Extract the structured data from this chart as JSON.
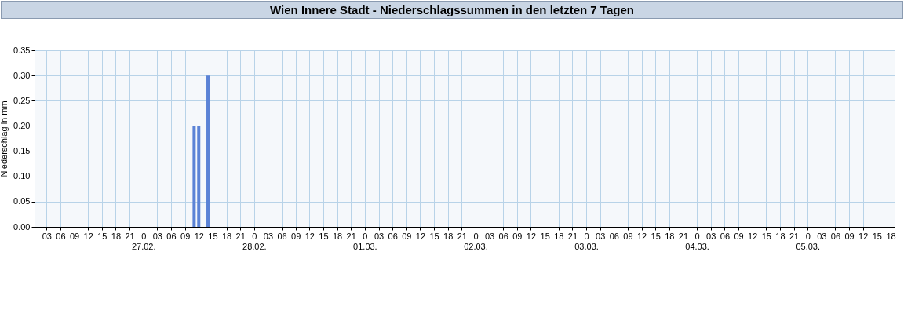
{
  "chart_data": {
    "type": "bar",
    "title": "Wien Innere Stadt - Niederschlagssummen in den letzten 7 Tagen",
    "ylabel": "Niederschlag in mm",
    "x": [
      "--02-27T11:00",
      "--02-27T12:00",
      "--02-27T14:00"
    ],
    "series": [
      {
        "color": "#5b83d6",
        "values": [
          0.2,
          0.2,
          0.3
        ]
      }
    ],
    "xlim": [
      "--02-26T01:15",
      "--03-05T18:00"
    ],
    "xticks": [
      {
        "value": "--02-26T03:00",
        "label": "03"
      },
      {
        "value": "--02-26T06:00",
        "label": "06"
      },
      {
        "value": "--02-26T09:00",
        "label": "09"
      },
      {
        "value": "--02-26T12:00",
        "label": "12"
      },
      {
        "value": "--02-26T15:00",
        "label": "15"
      },
      {
        "value": "--02-26T18:00",
        "label": "18"
      },
      {
        "value": "--02-26T21:00",
        "label": "21"
      },
      {
        "value": "--02-27T00:00",
        "label": "0\n27.02."
      },
      {
        "value": "--02-27T03:00",
        "label": "03"
      },
      {
        "value": "--02-27T06:00",
        "label": "06"
      },
      {
        "value": "--02-27T09:00",
        "label": "09"
      },
      {
        "value": "--02-27T12:00",
        "label": "12"
      },
      {
        "value": "--02-27T15:00",
        "label": "15"
      },
      {
        "value": "--02-27T18:00",
        "label": "18"
      },
      {
        "value": "--02-27T21:00",
        "label": "21"
      },
      {
        "value": "--02-28T00:00",
        "label": "0\n28.02."
      },
      {
        "value": "--02-28T03:00",
        "label": "03"
      },
      {
        "value": "--02-28T06:00",
        "label": "06"
      },
      {
        "value": "--02-28T09:00",
        "label": "09"
      },
      {
        "value": "--02-28T12:00",
        "label": "12"
      },
      {
        "value": "--02-28T15:00",
        "label": "15"
      },
      {
        "value": "--02-28T18:00",
        "label": "18"
      },
      {
        "value": "--02-28T21:00",
        "label": "21"
      },
      {
        "value": "--03-01T00:00",
        "label": "0\n01.03."
      },
      {
        "value": "--03-01T03:00",
        "label": "03"
      },
      {
        "value": "--03-01T06:00",
        "label": "06"
      },
      {
        "value": "--03-01T09:00",
        "label": "09"
      },
      {
        "value": "--03-01T12:00",
        "label": "12"
      },
      {
        "value": "--03-01T15:00",
        "label": "15"
      },
      {
        "value": "--03-01T18:00",
        "label": "18"
      },
      {
        "value": "--03-01T21:00",
        "label": "21"
      },
      {
        "value": "--03-02T00:00",
        "label": "0\n02.03."
      },
      {
        "value": "--03-02T03:00",
        "label": "03"
      },
      {
        "value": "--03-02T06:00",
        "label": "06"
      },
      {
        "value": "--03-02T09:00",
        "label": "09"
      },
      {
        "value": "--03-02T12:00",
        "label": "12"
      },
      {
        "value": "--03-02T15:00",
        "label": "15"
      },
      {
        "value": "--03-02T18:00",
        "label": "18"
      },
      {
        "value": "--03-02T21:00",
        "label": "21"
      },
      {
        "value": "--03-03T00:00",
        "label": "0\n03.03."
      },
      {
        "value": "--03-03T03:00",
        "label": "03"
      },
      {
        "value": "--03-03T06:00",
        "label": "06"
      },
      {
        "value": "--03-03T09:00",
        "label": "09"
      },
      {
        "value": "--03-03T12:00",
        "label": "12"
      },
      {
        "value": "--03-03T15:00",
        "label": "15"
      },
      {
        "value": "--03-03T18:00",
        "label": "18"
      },
      {
        "value": "--03-03T21:00",
        "label": "21"
      },
      {
        "value": "--03-04T00:00",
        "label": "0\n04.03."
      },
      {
        "value": "--03-04T03:00",
        "label": "03"
      },
      {
        "value": "--03-04T06:00",
        "label": "06"
      },
      {
        "value": "--03-04T09:00",
        "label": "09"
      },
      {
        "value": "--03-04T12:00",
        "label": "12"
      },
      {
        "value": "--03-04T15:00",
        "label": "15"
      },
      {
        "value": "--03-04T18:00",
        "label": "18"
      },
      {
        "value": "--03-04T21:00",
        "label": "21"
      },
      {
        "value": "--03-05T00:00",
        "label": "0\n05.03."
      },
      {
        "value": "--03-05T03:00",
        "label": "03"
      },
      {
        "value": "--03-05T06:00",
        "label": "06"
      },
      {
        "value": "--03-05T09:00",
        "label": "09"
      },
      {
        "value": "--03-05T12:00",
        "label": "12"
      },
      {
        "value": "--03-05T15:00",
        "label": "15"
      },
      {
        "value": "--03-05T18:00",
        "label": "18"
      }
    ],
    "ylim": [
      0,
      0.35
    ],
    "yticks": [
      {
        "value": 0,
        "label": "0.00"
      },
      {
        "value": 0.05,
        "label": "0.05"
      },
      {
        "value": 0.1,
        "label": "0.10"
      },
      {
        "value": 0.15,
        "label": "0.15"
      },
      {
        "value": 0.2,
        "label": "0.20"
      },
      {
        "value": 0.25,
        "label": "0.25"
      },
      {
        "value": 0.3,
        "label": "0.30"
      },
      {
        "value": 0.35,
        "label": "0.35"
      }
    ],
    "grid": true,
    "legend": false
  }
}
